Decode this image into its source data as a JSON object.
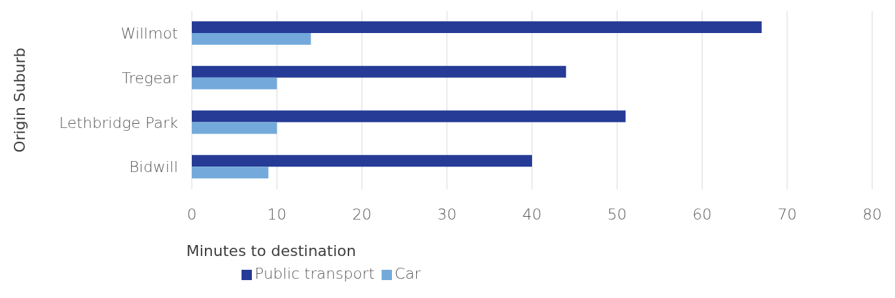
{
  "chart_data": {
    "type": "bar",
    "orientation": "horizontal",
    "xlabel": "Minutes to destination",
    "ylabel": "Origin Suburb",
    "categories": [
      "Willmot",
      "Tregear",
      "Lethbridge Park",
      "Bidwill"
    ],
    "series": [
      {
        "name": "Public transport",
        "color": "#253b96",
        "values": [
          67,
          44,
          51,
          40
        ]
      },
      {
        "name": "Car",
        "color": "#74aadb",
        "values": [
          14,
          10,
          10,
          9
        ]
      }
    ],
    "xlim": [
      0,
      80
    ],
    "xticks": [
      0,
      10,
      20,
      30,
      40,
      50,
      60,
      70,
      80
    ],
    "grid": "x",
    "legend": "bottom left"
  }
}
